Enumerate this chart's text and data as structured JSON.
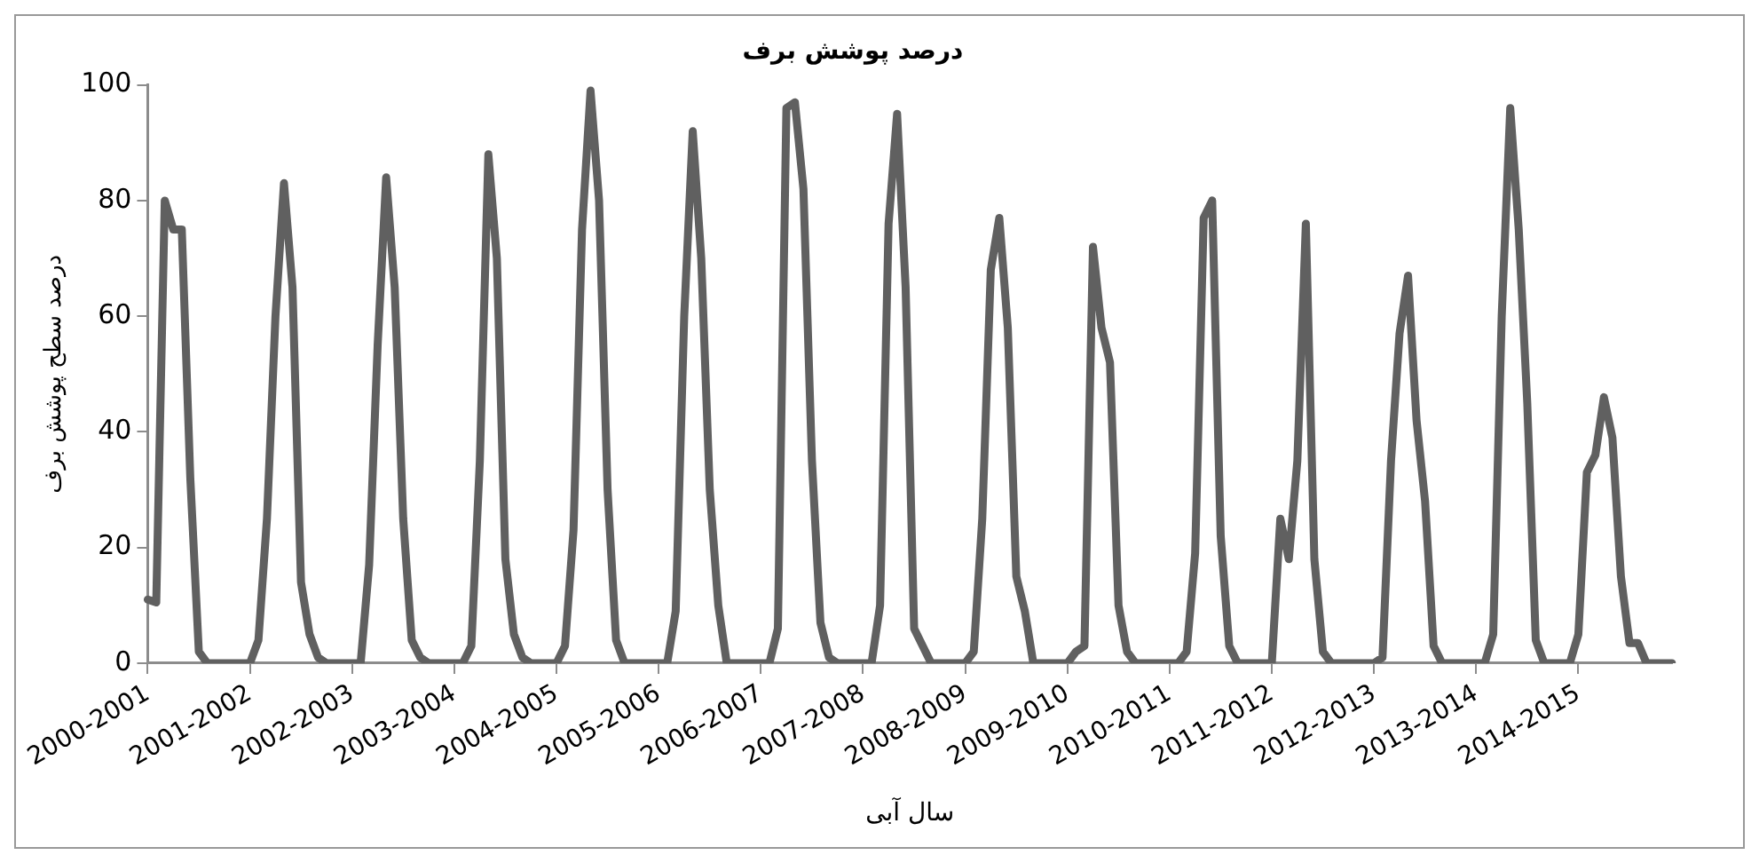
{
  "chart_data": {
    "type": "line",
    "title": "درصد پوشش برف",
    "xlabel": "سال آبی",
    "ylabel": "درصد سطح پوشش برف",
    "categories": [
      "2000-2001",
      null,
      null,
      null,
      null,
      null,
      null,
      null,
      null,
      null,
      null,
      null,
      "2001-2002",
      null,
      null,
      null,
      null,
      null,
      null,
      null,
      null,
      null,
      null,
      null,
      "2002-2003",
      null,
      null,
      null,
      null,
      null,
      null,
      null,
      null,
      null,
      null,
      null,
      "2003-2004",
      null,
      null,
      null,
      null,
      null,
      null,
      null,
      null,
      null,
      null,
      null,
      "2004-2005",
      null,
      null,
      null,
      null,
      null,
      null,
      null,
      null,
      null,
      null,
      null,
      "2005-2006",
      null,
      null,
      null,
      null,
      null,
      null,
      null,
      null,
      null,
      null,
      null,
      "2006-2007",
      null,
      null,
      null,
      null,
      null,
      null,
      null,
      null,
      null,
      null,
      null,
      "2007-2008",
      null,
      null,
      null,
      null,
      null,
      null,
      null,
      null,
      null,
      null,
      null,
      "2008-2009",
      null,
      null,
      null,
      null,
      null,
      null,
      null,
      null,
      null,
      null,
      null,
      "2009-2010",
      null,
      null,
      null,
      null,
      null,
      null,
      null,
      null,
      null,
      null,
      null,
      "2010-2011",
      null,
      null,
      null,
      null,
      null,
      null,
      null,
      null,
      null,
      null,
      null,
      "2011-2012",
      null,
      null,
      null,
      null,
      null,
      null,
      null,
      null,
      null,
      null,
      null,
      "2012-2013",
      null,
      null,
      null,
      null,
      null,
      null,
      null,
      null,
      null,
      null,
      null,
      "2013-2014",
      null,
      null,
      null,
      null,
      null,
      null,
      null,
      null,
      null,
      null,
      null,
      "2014-2015",
      null,
      null,
      null,
      null,
      null,
      null,
      null,
      null,
      null,
      null,
      null
    ],
    "series": [
      {
        "color": "#606060",
        "values": [
          11,
          10.5,
          80,
          75,
          75,
          32,
          2,
          0,
          0,
          0,
          0,
          0,
          0,
          4,
          25,
          60,
          83,
          65,
          14,
          5,
          1,
          0,
          0,
          0,
          0,
          0,
          17,
          55,
          84,
          65,
          25,
          4,
          1,
          0,
          0,
          0,
          0,
          0,
          3,
          35,
          88,
          70,
          18,
          5,
          1,
          0,
          0,
          0,
          0,
          3,
          23,
          75,
          99,
          80,
          30,
          4,
          0,
          0,
          0,
          0,
          0,
          0,
          9,
          60,
          92,
          70,
          30,
          10,
          0,
          0,
          0,
          0,
          0,
          0,
          6,
          96,
          97,
          82,
          35,
          7,
          1,
          0,
          0,
          0,
          0,
          0,
          10,
          76,
          95,
          65,
          6,
          3,
          0,
          0,
          0,
          0,
          0,
          2,
          25,
          68,
          77,
          58,
          15,
          9,
          0,
          0,
          0,
          0,
          0,
          2,
          3,
          72,
          58,
          52,
          10,
          2,
          0,
          0,
          0,
          0,
          0,
          0,
          2,
          19,
          77,
          80,
          22,
          3,
          0,
          0,
          0,
          0,
          0,
          25,
          18,
          35,
          76,
          18,
          2,
          0,
          0,
          0,
          0,
          0,
          0,
          1,
          35,
          57,
          67,
          42,
          28,
          3,
          0,
          0,
          0,
          0,
          0,
          0,
          5,
          60,
          96,
          75,
          45,
          4,
          0,
          0,
          0,
          0,
          5,
          33,
          36,
          46,
          39,
          15,
          3.5,
          3.5,
          0,
          0,
          0,
          0
        ]
      }
    ],
    "ylim": [
      0,
      100
    ],
    "yticks": [
      0,
      20,
      40,
      60,
      80,
      100
    ],
    "grid": false,
    "legend": false,
    "marker": "none",
    "line_style": "solid"
  }
}
